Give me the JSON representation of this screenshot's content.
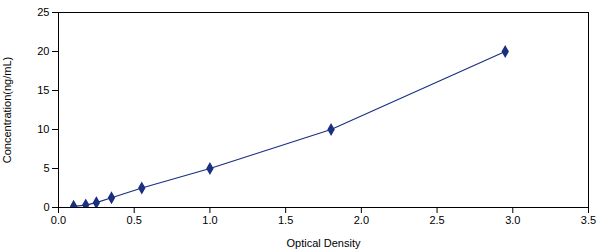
{
  "chart_data": {
    "type": "line",
    "x": [
      0.1,
      0.18,
      0.25,
      0.35,
      0.55,
      1.0,
      1.8,
      2.95
    ],
    "values": [
      0.156,
      0.312,
      0.625,
      1.25,
      2.5,
      5.0,
      10.0,
      20.0
    ],
    "color": "#1a3080",
    "marker": "diamond",
    "xlabel": "Optical Density",
    "ylabel": "Concentration(ng/mL)",
    "xlim": [
      0,
      3.5
    ],
    "ylim": [
      0,
      25
    ],
    "xticks": [
      {
        "value": 0,
        "label": "0.0"
      },
      0.5,
      {
        "value": 1.0,
        "label": "1.0"
      },
      1.5,
      {
        "value": 2.0,
        "label": "2.0"
      },
      2.5,
      {
        "value": 3.0,
        "label": "3.0"
      },
      3.5
    ],
    "yticks": [
      0,
      5,
      10,
      15,
      20,
      25
    ],
    "grid": false
  }
}
